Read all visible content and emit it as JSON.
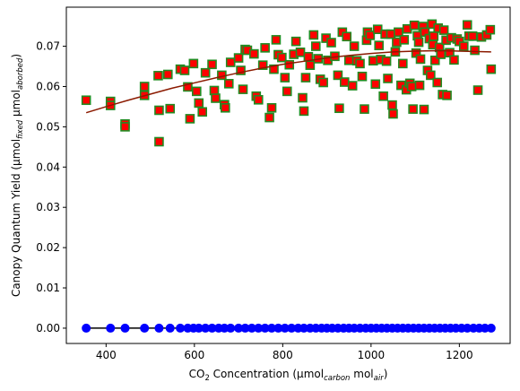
{
  "chart_data": {
    "type": "scatter",
    "title": "",
    "xlabel": {
      "parts": [
        {
          "text": "CO",
          "style": "normal"
        },
        {
          "text": "2",
          "style": "sub"
        },
        {
          "text": " Concentration (µmol",
          "style": "normal"
        },
        {
          "text": "carbon",
          "style": "sub-italic"
        },
        {
          "text": " mol",
          "style": "normal"
        },
        {
          "text": "air",
          "style": "sub-italic"
        },
        {
          "text": ")",
          "style": "normal"
        }
      ]
    },
    "ylabel": {
      "parts": [
        {
          "text": "Canopy Quantum Yield (µmol",
          "style": "normal"
        },
        {
          "text": "fixed",
          "style": "sub-italic"
        },
        {
          "text": " µmol",
          "style": "normal"
        },
        {
          "text": "aborbed",
          "style": "sub-italic"
        },
        {
          "text": ")",
          "style": "normal"
        }
      ]
    },
    "xlim": [
      310,
      1315
    ],
    "ylim": [
      -0.0038,
      0.0797
    ],
    "x_ticks": [
      400,
      600,
      800,
      1000,
      1200
    ],
    "y_ticks": [
      0.0,
      0.01,
      0.02,
      0.03,
      0.04,
      0.05,
      0.06,
      0.07
    ],
    "y_tick_labels": [
      "0.00",
      "0.01",
      "0.02",
      "0.03",
      "0.04",
      "0.05",
      "0.06",
      "0.07"
    ],
    "grid": false,
    "series": [
      {
        "marker": "square-green-edge",
        "color": "#ff0000",
        "edge_color": "#228b22",
        "points": [
          [
            355,
            0.0566
          ],
          [
            410,
            0.0563
          ],
          [
            410,
            0.0553
          ],
          [
            443,
            0.0507
          ],
          [
            443,
            0.05
          ],
          [
            487,
            0.06
          ],
          [
            487,
            0.0578
          ],
          [
            518,
            0.0627
          ],
          [
            520,
            0.0541
          ],
          [
            520,
            0.0463
          ],
          [
            540,
            0.063
          ],
          [
            545,
            0.0545
          ],
          [
            568,
            0.0643
          ],
          [
            578,
            0.064
          ],
          [
            585,
            0.0599
          ],
          [
            590,
            0.052
          ],
          [
            598,
            0.0657
          ],
          [
            605,
            0.0588
          ],
          [
            610,
            0.0559
          ],
          [
            618,
            0.0537
          ],
          [
            625,
            0.0634
          ],
          [
            640,
            0.0655
          ],
          [
            645,
            0.059
          ],
          [
            648,
            0.0571
          ],
          [
            662,
            0.0628
          ],
          [
            668,
            0.0555
          ],
          [
            670,
            0.0547
          ],
          [
            678,
            0.0607
          ],
          [
            682,
            0.066
          ],
          [
            700,
            0.0671
          ],
          [
            705,
            0.064
          ],
          [
            710,
            0.0593
          ],
          [
            715,
            0.0692
          ],
          [
            720,
            0.069
          ],
          [
            735,
            0.0681
          ],
          [
            740,
            0.0576
          ],
          [
            745,
            0.0567
          ],
          [
            755,
            0.0653
          ],
          [
            760,
            0.0696
          ],
          [
            770,
            0.0523
          ],
          [
            775,
            0.0547
          ],
          [
            780,
            0.0643
          ],
          [
            785,
            0.0716
          ],
          [
            790,
            0.0679
          ],
          [
            798,
            0.0672
          ],
          [
            805,
            0.0622
          ],
          [
            810,
            0.0588
          ],
          [
            815,
            0.0654
          ],
          [
            825,
            0.068
          ],
          [
            830,
            0.0712
          ],
          [
            840,
            0.0685
          ],
          [
            845,
            0.0572
          ],
          [
            848,
            0.0539
          ],
          [
            852,
            0.0622
          ],
          [
            858,
            0.0674
          ],
          [
            862,
            0.0653
          ],
          [
            870,
            0.0728
          ],
          [
            875,
            0.07
          ],
          [
            880,
            0.0669
          ],
          [
            885,
            0.0618
          ],
          [
            892,
            0.061
          ],
          [
            898,
            0.072
          ],
          [
            902,
            0.0665
          ],
          [
            910,
            0.0709
          ],
          [
            918,
            0.0675
          ],
          [
            925,
            0.0628
          ],
          [
            928,
            0.0546
          ],
          [
            935,
            0.0735
          ],
          [
            940,
            0.0611
          ],
          [
            945,
            0.0724
          ],
          [
            950,
            0.0665
          ],
          [
            958,
            0.0602
          ],
          [
            962,
            0.07
          ],
          [
            968,
            0.0664
          ],
          [
            975,
            0.0657
          ],
          [
            980,
            0.0625
          ],
          [
            985,
            0.0544
          ],
          [
            990,
            0.0715
          ],
          [
            992,
            0.0735
          ],
          [
            998,
            0.0727
          ],
          [
            1005,
            0.0664
          ],
          [
            1010,
            0.0606
          ],
          [
            1015,
            0.0742
          ],
          [
            1018,
            0.0702
          ],
          [
            1022,
            0.0667
          ],
          [
            1028,
            0.0576
          ],
          [
            1032,
            0.073
          ],
          [
            1035,
            0.0663
          ],
          [
            1038,
            0.062
          ],
          [
            1045,
            0.073
          ],
          [
            1048,
            0.0554
          ],
          [
            1050,
            0.0532
          ],
          [
            1055,
            0.0686
          ],
          [
            1058,
            0.071
          ],
          [
            1062,
            0.0735
          ],
          [
            1068,
            0.0603
          ],
          [
            1072,
            0.0657
          ],
          [
            1075,
            0.0716
          ],
          [
            1080,
            0.0592
          ],
          [
            1082,
            0.0743
          ],
          [
            1088,
            0.0608
          ],
          [
            1092,
            0.06
          ],
          [
            1095,
            0.0544
          ],
          [
            1098,
            0.0752
          ],
          [
            1102,
            0.0683
          ],
          [
            1105,
            0.0726
          ],
          [
            1108,
            0.071
          ],
          [
            1110,
            0.0603
          ],
          [
            1112,
            0.0668
          ],
          [
            1118,
            0.0749
          ],
          [
            1120,
            0.0543
          ],
          [
            1122,
            0.0735
          ],
          [
            1128,
            0.064
          ],
          [
            1132,
            0.0719
          ],
          [
            1135,
            0.0628
          ],
          [
            1138,
            0.0755
          ],
          [
            1140,
            0.0704
          ],
          [
            1142,
            0.0725
          ],
          [
            1145,
            0.0665
          ],
          [
            1150,
            0.061
          ],
          [
            1152,
            0.0745
          ],
          [
            1155,
            0.0697
          ],
          [
            1158,
            0.068
          ],
          [
            1162,
            0.058
          ],
          [
            1165,
            0.074
          ],
          [
            1170,
            0.0715
          ],
          [
            1172,
            0.0578
          ],
          [
            1178,
            0.0684
          ],
          [
            1182,
            0.0721
          ],
          [
            1188,
            0.0666
          ],
          [
            1195,
            0.0718
          ],
          [
            1200,
            0.0712
          ],
          [
            1210,
            0.07
          ],
          [
            1218,
            0.0753
          ],
          [
            1222,
            0.0725
          ],
          [
            1230,
            0.0725
          ],
          [
            1235,
            0.069
          ],
          [
            1242,
            0.0591
          ],
          [
            1250,
            0.0723
          ],
          [
            1262,
            0.0728
          ],
          [
            1270,
            0.0741
          ],
          [
            1272,
            0.0643
          ]
        ]
      },
      {
        "marker": "circle",
        "color": "#0000ff",
        "points": [
          [
            355,
            0
          ],
          [
            410,
            0
          ],
          [
            443,
            0
          ],
          [
            487,
            0
          ],
          [
            520,
            0
          ],
          [
            545,
            0
          ],
          [
            568,
            0
          ],
          [
            585,
            0
          ],
          [
            598,
            0
          ],
          [
            610,
            0
          ],
          [
            625,
            0
          ],
          [
            640,
            0
          ],
          [
            655,
            0
          ],
          [
            668,
            0
          ],
          [
            682,
            0
          ],
          [
            700,
            0
          ],
          [
            715,
            0
          ],
          [
            730,
            0
          ],
          [
            745,
            0
          ],
          [
            760,
            0
          ],
          [
            775,
            0
          ],
          [
            790,
            0
          ],
          [
            805,
            0
          ],
          [
            820,
            0
          ],
          [
            835,
            0
          ],
          [
            848,
            0
          ],
          [
            862,
            0
          ],
          [
            875,
            0
          ],
          [
            888,
            0
          ],
          [
            900,
            0
          ],
          [
            912,
            0
          ],
          [
            925,
            0
          ],
          [
            938,
            0
          ],
          [
            950,
            0
          ],
          [
            962,
            0
          ],
          [
            975,
            0
          ],
          [
            988,
            0
          ],
          [
            1000,
            0
          ],
          [
            1012,
            0
          ],
          [
            1024,
            0
          ],
          [
            1036,
            0
          ],
          [
            1048,
            0
          ],
          [
            1060,
            0
          ],
          [
            1072,
            0
          ],
          [
            1084,
            0
          ],
          [
            1096,
            0
          ],
          [
            1108,
            0
          ],
          [
            1120,
            0
          ],
          [
            1132,
            0
          ],
          [
            1144,
            0
          ],
          [
            1156,
            0
          ],
          [
            1168,
            0
          ],
          [
            1180,
            0
          ],
          [
            1192,
            0
          ],
          [
            1205,
            0
          ],
          [
            1218,
            0
          ],
          [
            1232,
            0
          ],
          [
            1245,
            0
          ],
          [
            1258,
            0
          ],
          [
            1272,
            0
          ]
        ]
      },
      {
        "marker": "line",
        "color": "#8b1a00",
        "points": [
          [
            355,
            0.0535
          ],
          [
            400,
            0.055
          ],
          [
            450,
            0.0566
          ],
          [
            500,
            0.0581
          ],
          [
            550,
            0.0596
          ],
          [
            600,
            0.0609
          ],
          [
            650,
            0.0622
          ],
          [
            700,
            0.0634
          ],
          [
            750,
            0.0645
          ],
          [
            800,
            0.0655
          ],
          [
            850,
            0.0663
          ],
          [
            900,
            0.0671
          ],
          [
            950,
            0.0677
          ],
          [
            1000,
            0.0682
          ],
          [
            1050,
            0.0686
          ],
          [
            1100,
            0.0688
          ],
          [
            1150,
            0.0689
          ],
          [
            1200,
            0.0688
          ],
          [
            1272,
            0.0686
          ]
        ]
      },
      {
        "marker": "line",
        "color": "#000000",
        "points": [
          [
            355,
            0
          ],
          [
            1272,
            0
          ]
        ]
      }
    ]
  }
}
